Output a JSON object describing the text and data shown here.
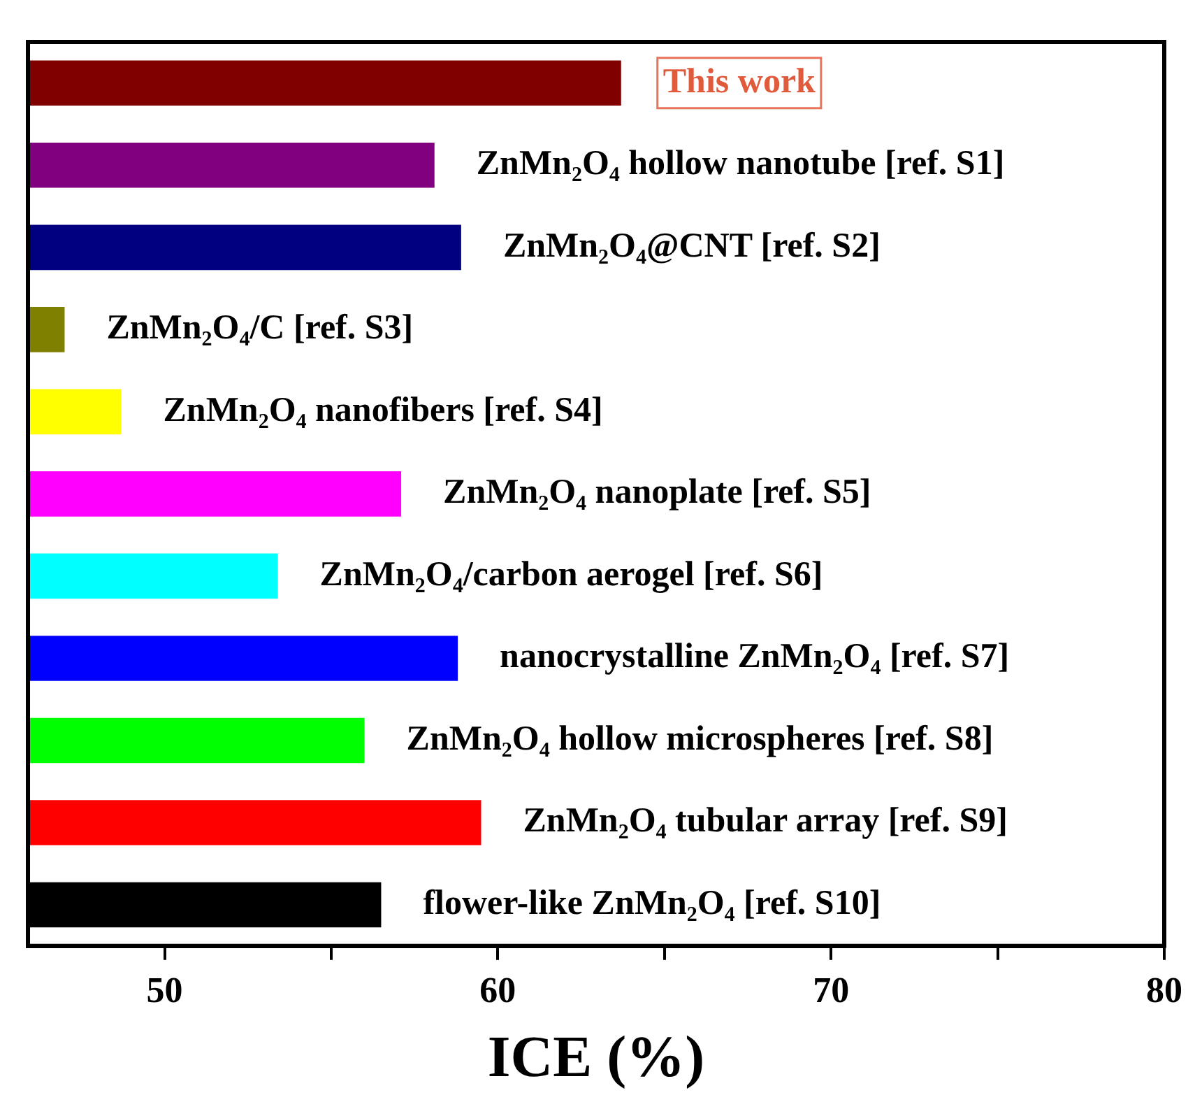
{
  "chart_data": {
    "type": "bar",
    "orientation": "horizontal",
    "xlabel": "ICE (%)",
    "categories": [
      "This work",
      "ZnMn₂O₄ hollow nanotube [ref. S1]",
      "ZnMn₂O₄@CNT [ref. S2]",
      "ZnMn₂O₄/C [ref. S3]",
      "ZnMn₂O₄ nanofibers [ref. S4]",
      "ZnMn₂O₄ nanoplate [ref. S5]",
      "ZnMn₂O₄/carbon aerogel [ref. S6]",
      "nanocrystalline ZnMn₂O₄ [ref. S7]",
      "ZnMn₂O₄ hollow microspheres [ref. S8]",
      "ZnMn₂O₄ tubular array [ref. S9]",
      "flower-like ZnMn₂O₄ [ref. S10]"
    ],
    "values": [
      63.7,
      58.1,
      58.9,
      47.0,
      48.7,
      57.1,
      53.4,
      58.8,
      56.0,
      59.5,
      56.5
    ],
    "colors": [
      "#800000",
      "#800080",
      "#000080",
      "#808000",
      "#ffff00",
      "#ff00ff",
      "#00ffff",
      "#0000ff",
      "#00ff00",
      "#ff0000",
      "#000000"
    ],
    "xlim": [
      45.9,
      80
    ],
    "xticks": [
      50,
      {
        "value": 55,
        "label": null
      },
      60,
      {
        "value": 65,
        "label": null
      },
      70,
      {
        "value": 75,
        "label": null
      },
      80
    ],
    "tick_labels": "x",
    "grid": false,
    "legend": false
  }
}
